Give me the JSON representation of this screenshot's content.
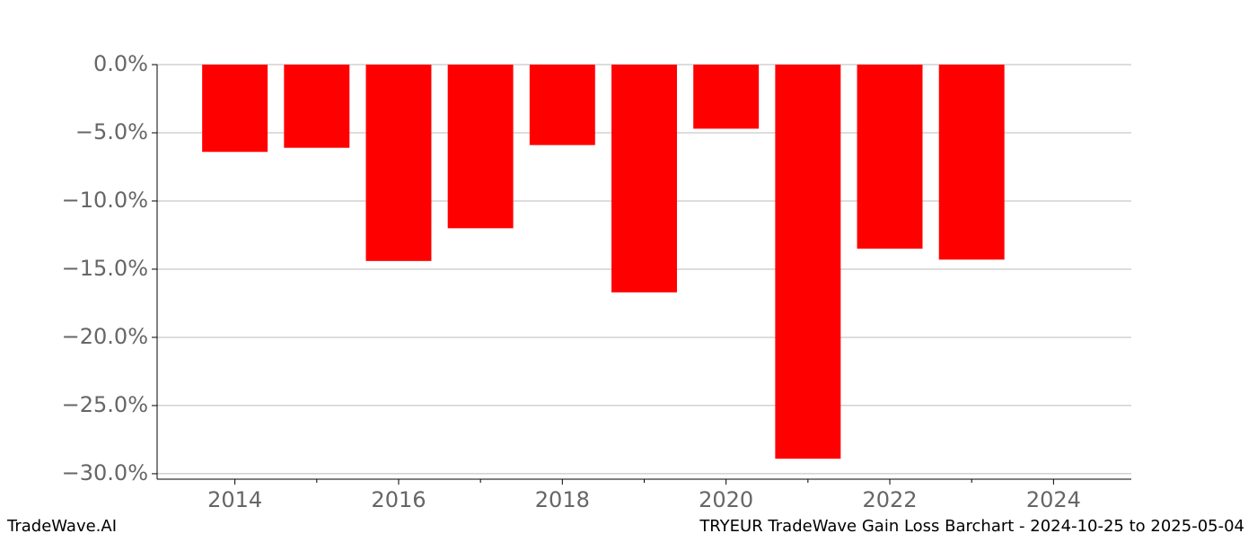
{
  "chart_data": {
    "type": "bar",
    "title": "TRYEUR TradeWave Gain Loss Barchart - 2024-10-25 to 2025-05-04",
    "watermark": "TradeWave.AI",
    "x": [
      2014,
      2015,
      2016,
      2017,
      2018,
      2019,
      2020,
      2021,
      2022,
      2023
    ],
    "values": [
      -6.4,
      -6.1,
      -14.4,
      -12.0,
      -5.9,
      -16.7,
      -4.7,
      -28.9,
      -13.5,
      -14.3
    ],
    "color": "#ff0000",
    "xlim": [
      2013.05,
      2024.95
    ],
    "xticks": [
      2014,
      2016,
      2018,
      2020,
      2022,
      2024
    ],
    "xminorticks": [
      2015,
      2017,
      2019,
      2021,
      2023
    ],
    "ylim": [
      -30.4,
      0
    ],
    "yticks": [
      {
        "value": 0,
        "label": "0.0%"
      },
      {
        "value": -5,
        "label": "−5.0%"
      },
      {
        "value": -10,
        "label": "−10.0%"
      },
      {
        "value": -15,
        "label": "−15.0%"
      },
      {
        "value": -20,
        "label": "−20.0%"
      },
      {
        "value": -25,
        "label": "−25.0%"
      },
      {
        "value": -30,
        "label": "−30.0%"
      }
    ],
    "grid": true
  }
}
